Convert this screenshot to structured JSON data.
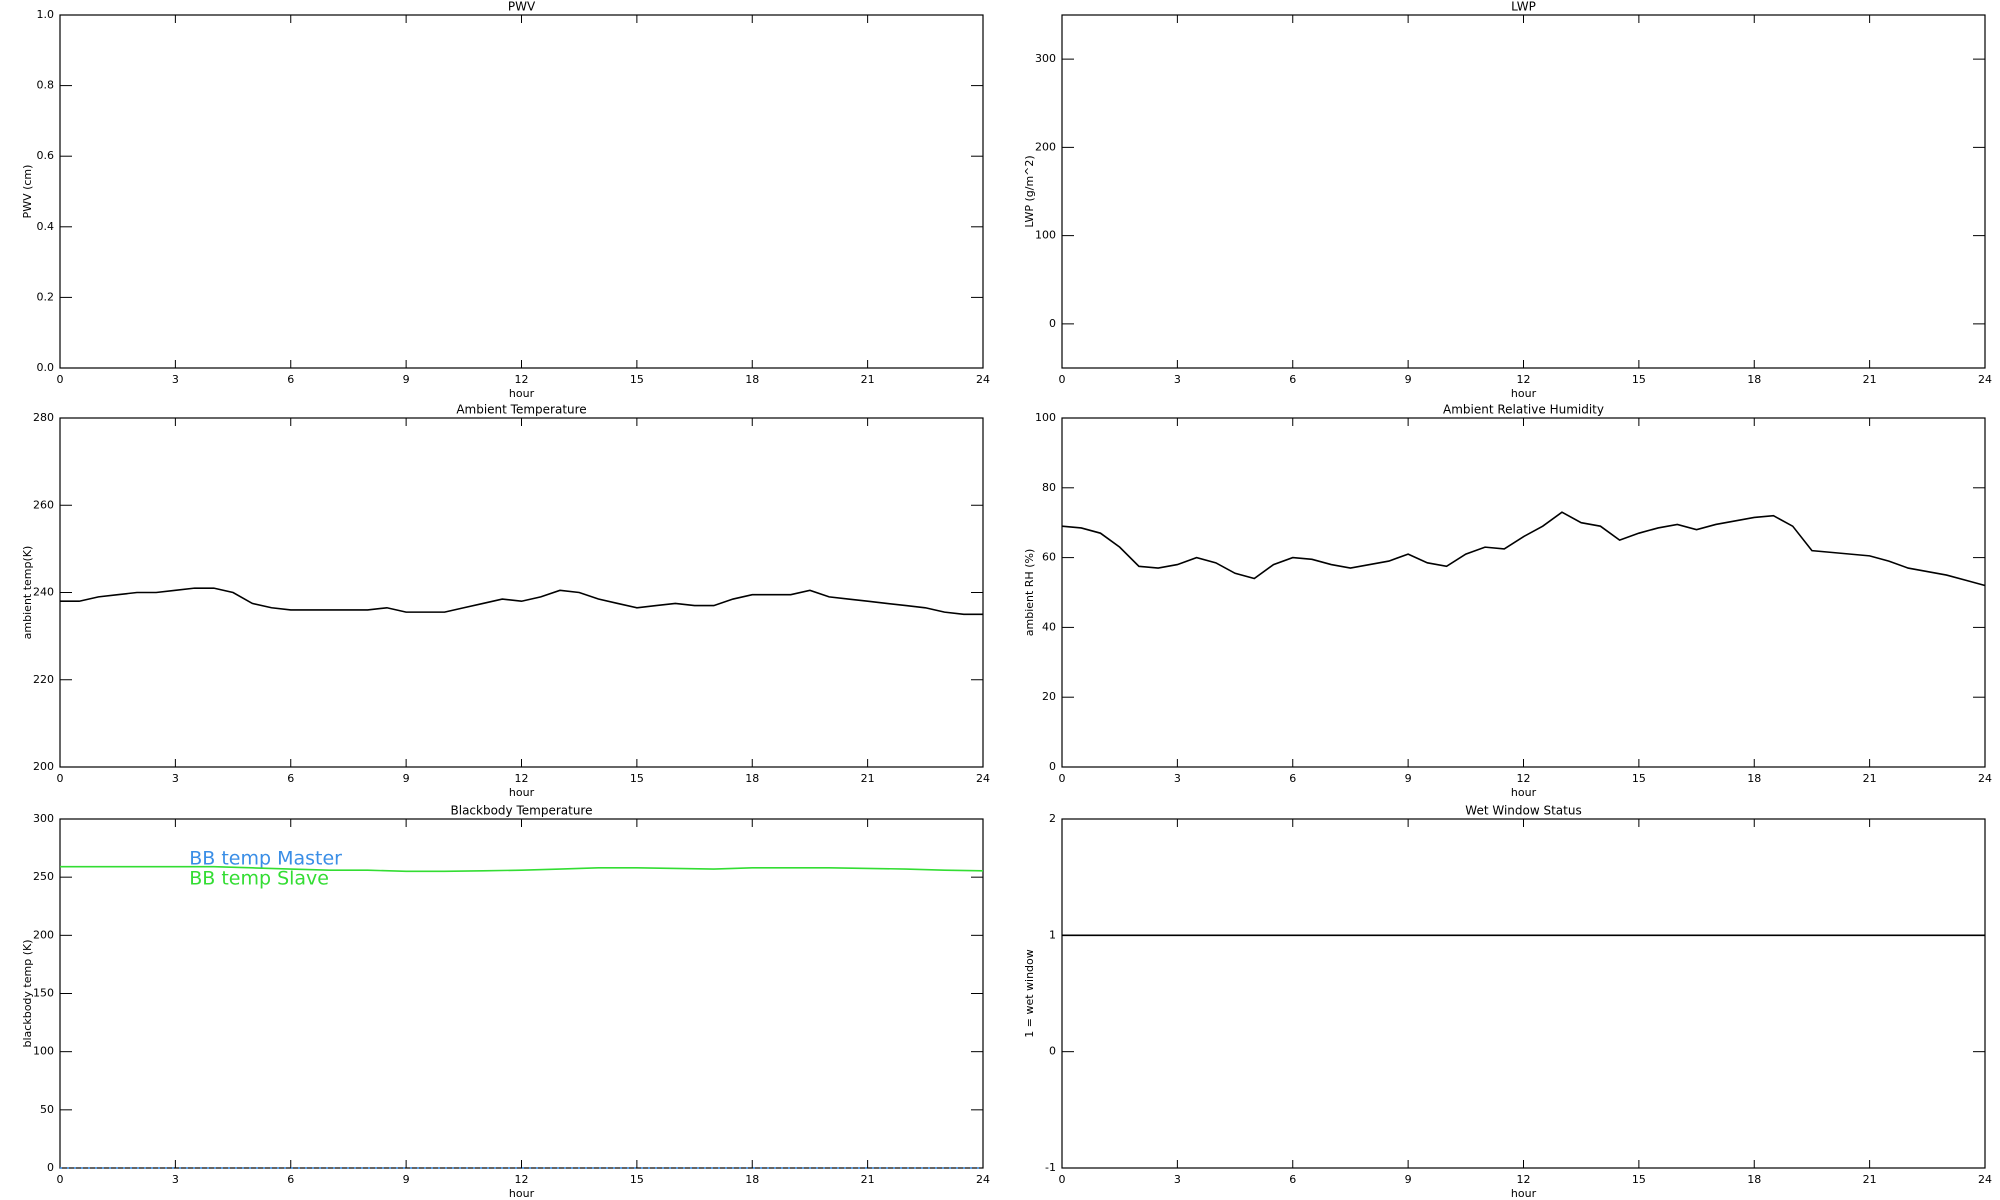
{
  "chart_data": [
    {
      "type": "line",
      "title": "PWV",
      "xlabel": "hour",
      "ylabel": "PWV (cm)",
      "xlim": [
        0,
        24
      ],
      "xticks": [
        0,
        3,
        6,
        9,
        12,
        15,
        18,
        21,
        24
      ],
      "ylim": [
        0,
        1
      ],
      "yticks": [
        {
          "value": 0,
          "label": "0.0"
        },
        {
          "value": 0.2,
          "label": "0.2"
        },
        {
          "value": 0.4,
          "label": "0.4"
        },
        {
          "value": 0.6,
          "label": "0.6"
        },
        {
          "value": 0.8,
          "label": "0.8"
        },
        {
          "value": 1,
          "label": "1.0"
        }
      ],
      "x": [],
      "series": []
    },
    {
      "type": "line",
      "title": "LWP",
      "xlabel": "hour",
      "ylabel": "LWP (g/m^2)",
      "xlim": [
        0,
        24
      ],
      "xticks": [
        0,
        3,
        6,
        9,
        12,
        15,
        18,
        21,
        24
      ],
      "ylim": [
        -50,
        350
      ],
      "yticks": [
        0,
        100,
        200,
        300
      ],
      "x": [],
      "series": []
    },
    {
      "type": "line",
      "title": "Ambient Temperature",
      "xlabel": "hour",
      "ylabel": "ambient temp(K)",
      "xlim": [
        0,
        24
      ],
      "xticks": [
        0,
        3,
        6,
        9,
        12,
        15,
        18,
        21,
        24
      ],
      "ylim": [
        200,
        280
      ],
      "yticks": [
        200,
        220,
        240,
        260,
        280
      ],
      "x": [
        0,
        0.5,
        1,
        1.5,
        2,
        2.5,
        3,
        3.5,
        4,
        4.5,
        5,
        5.5,
        6,
        6.5,
        7,
        7.5,
        8,
        8.5,
        9,
        9.5,
        10,
        10.5,
        11,
        11.5,
        12,
        12.5,
        13,
        13.5,
        14,
        14.5,
        15,
        15.5,
        16,
        16.5,
        17,
        17.5,
        18,
        18.5,
        19,
        19.5,
        20,
        20.5,
        21,
        21.5,
        22,
        22.5,
        23,
        23.5,
        24
      ],
      "series": [
        {
          "color": "#000000",
          "values": [
            238,
            238,
            239,
            239.5,
            240,
            240,
            240.5,
            241,
            241,
            240,
            237.5,
            236.5,
            236,
            236,
            236,
            236,
            236,
            236.5,
            235.5,
            235.5,
            235.5,
            236.5,
            237.5,
            238.5,
            238,
            239,
            240.5,
            240,
            238.5,
            237.5,
            236.5,
            237,
            237.5,
            237,
            237,
            238.5,
            239.5,
            239.5,
            239.5,
            240.5,
            239,
            238.5,
            238,
            237.5,
            237,
            236.5,
            235.5,
            235,
            235
          ]
        }
      ]
    },
    {
      "type": "line",
      "title": "Ambient Relative Humidity",
      "xlabel": "hour",
      "ylabel": "ambient RH (%)",
      "xlim": [
        0,
        24
      ],
      "xticks": [
        0,
        3,
        6,
        9,
        12,
        15,
        18,
        21,
        24
      ],
      "ylim": [
        0,
        100
      ],
      "yticks": [
        0,
        20,
        40,
        60,
        80,
        100
      ],
      "x": [
        0,
        0.5,
        1,
        1.5,
        2,
        2.5,
        3,
        3.5,
        4,
        4.5,
        5,
        5.5,
        6,
        6.5,
        7,
        7.5,
        8,
        8.5,
        9,
        9.5,
        10,
        10.5,
        11,
        11.5,
        12,
        12.5,
        13,
        13.5,
        14,
        14.5,
        15,
        15.5,
        16,
        16.5,
        17,
        17.5,
        18,
        18.5,
        19,
        19.5,
        20,
        20.5,
        21,
        21.5,
        22,
        22.5,
        23,
        23.5,
        24
      ],
      "series": [
        {
          "color": "#000000",
          "values": [
            69,
            68.5,
            67,
            63,
            57.5,
            57,
            58,
            60,
            58.5,
            55.5,
            54,
            58,
            60,
            59.5,
            58,
            57,
            58,
            59,
            61,
            58.5,
            57.5,
            61,
            63,
            62.5,
            66,
            69,
            73,
            70,
            69,
            65,
            67,
            68.5,
            69.5,
            68,
            69.5,
            70.5,
            71.5,
            72,
            69,
            62,
            61.5,
            61,
            60.5,
            59,
            57,
            56,
            55,
            53.5,
            52
          ]
        }
      ]
    },
    {
      "type": "line",
      "title": "Blackbody Temperature",
      "xlabel": "hour",
      "ylabel": "blackbody temp (K)",
      "xlim": [
        0,
        24
      ],
      "xticks": [
        0,
        3,
        6,
        9,
        12,
        15,
        18,
        21,
        24
      ],
      "ylim": [
        0,
        300
      ],
      "yticks": [
        0,
        50,
        100,
        150,
        200,
        250,
        300
      ],
      "legend": "upper left",
      "x": [
        0,
        1,
        2,
        3,
        4,
        5,
        6,
        7,
        8,
        9,
        10,
        11,
        12,
        13,
        14,
        15,
        16,
        17,
        18,
        19,
        20,
        21,
        22,
        23,
        24
      ],
      "series": [
        {
          "name": "BB temp Master",
          "color": "#3a8ee6",
          "linestyle": "dotted",
          "values": [
            0,
            0,
            0,
            0,
            0,
            0,
            0,
            0,
            0,
            0,
            0,
            0,
            0,
            0,
            0,
            0,
            0,
            0,
            0,
            0,
            0,
            0,
            0,
            0,
            0
          ]
        },
        {
          "name": "BB temp Slave",
          "color": "#33dd33",
          "linestyle": "solid",
          "values": [
            259,
            259,
            259,
            259,
            259,
            258,
            257,
            256,
            256,
            255,
            255,
            255.5,
            256,
            257,
            258,
            258,
            257.5,
            257,
            258,
            258,
            258,
            257.5,
            257,
            256,
            255.5
          ]
        }
      ]
    },
    {
      "type": "line",
      "title": "Wet Window Status",
      "xlabel": "hour",
      "ylabel": "1 = wet window",
      "xlim": [
        0,
        24
      ],
      "xticks": [
        0,
        3,
        6,
        9,
        12,
        15,
        18,
        21,
        24
      ],
      "ylim": [
        -1,
        2
      ],
      "yticks": [
        -1,
        0,
        1,
        2
      ],
      "x": [
        0,
        24
      ],
      "series": [
        {
          "color": "#000000",
          "values": [
            1,
            1
          ]
        }
      ]
    }
  ]
}
